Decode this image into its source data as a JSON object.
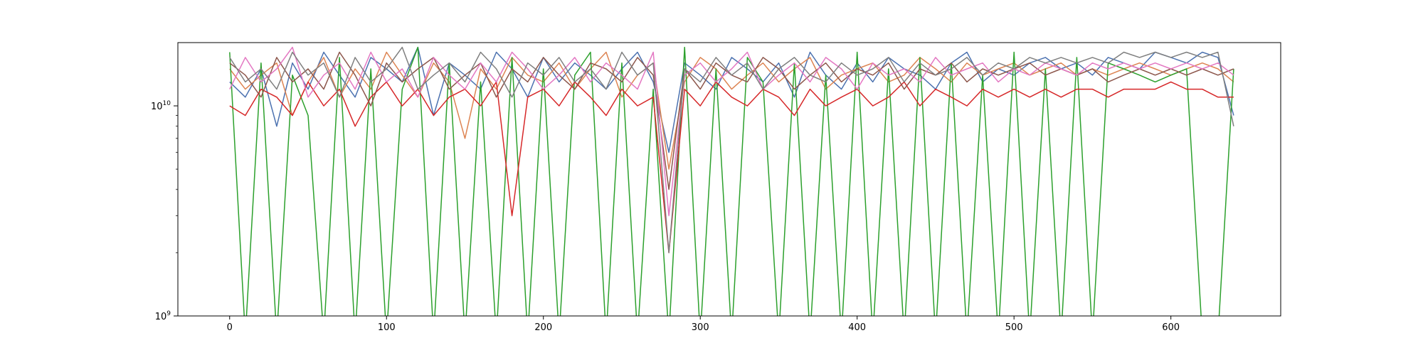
{
  "chart_data": {
    "type": "line",
    "title": "",
    "xlabel": "",
    "ylabel": "",
    "y_scale": "log",
    "xlim": [
      -33,
      670
    ],
    "ylim": [
      1000000000,
      20000000000
    ],
    "grid": false,
    "legend": "none",
    "x_ticks": [
      {
        "value": 0,
        "label": "0"
      },
      {
        "value": 100,
        "label": "100"
      },
      {
        "value": 200,
        "label": "200"
      },
      {
        "value": 300,
        "label": "300"
      },
      {
        "value": 400,
        "label": "400"
      },
      {
        "value": 500,
        "label": "500"
      },
      {
        "value": 600,
        "label": "600"
      }
    ],
    "y_ticks": [
      {
        "value": 1000000000,
        "base": "10",
        "exp": "9"
      },
      {
        "value": 10000000000,
        "base": "10",
        "exp": "10"
      }
    ],
    "x_start": 0,
    "x_step": 10,
    "series": [
      {
        "color": "#4c72b0",
        "values": [
          13000000000.0,
          11000000000.0,
          15000000000.0,
          8000000000.0,
          16000000000.0,
          12000000000.0,
          18000000000.0,
          14000000000.0,
          11000000000.0,
          17000000000.0,
          15000000000.0,
          13000000000.0,
          19000000000.0,
          9000000000.0,
          16000000000.0,
          14000000000.0,
          12000000000.0,
          18000000000.0,
          15000000000.0,
          11000000000.0,
          17000000000.0,
          13000000000.0,
          16000000000.0,
          14000000000.0,
          12000000000.0,
          15000000000.0,
          18000000000.0,
          13000000000.0,
          6000000000.0,
          16000000000.0,
          14000000000.0,
          12000000000.0,
          17000000000.0,
          15000000000.0,
          13000000000.0,
          16000000000.0,
          11000000000.0,
          18000000000.0,
          14000000000.0,
          12000000000.0,
          16000000000.0,
          13000000000.0,
          17000000000.0,
          15000000000.0,
          14000000000.0,
          12000000000.0,
          16000000000.0,
          18000000000.0,
          13000000000.0,
          15000000000.0,
          14000000000.0,
          16000000000.0,
          17000000000.0,
          15000000000.0,
          16000000000.0,
          14000000000.0,
          17000000000.0,
          16000000000.0,
          15000000000.0,
          18000000000.0,
          17000000000.0,
          16000000000.0,
          18000000000.0,
          17000000000.0,
          9000000000.0
        ]
      },
      {
        "color": "#dd8452",
        "values": [
          15000000000.0,
          12000000000.0,
          14000000000.0,
          16000000000.0,
          9000000000.0,
          13000000000.0,
          17000000000.0,
          11000000000.0,
          15000000000.0,
          12000000000.0,
          18000000000.0,
          14000000000.0,
          11000000000.0,
          16000000000.0,
          13000000000.0,
          7000000000.0,
          15000000000.0,
          12000000000.0,
          17000000000.0,
          14000000000.0,
          13000000000.0,
          16000000000.0,
          12000000000.0,
          15000000000.0,
          18000000000.0,
          11000000000.0,
          14000000000.0,
          16000000000.0,
          5000000000.0,
          13000000000.0,
          17000000000.0,
          15000000000.0,
          12000000000.0,
          14000000000.0,
          16000000000.0,
          13000000000.0,
          15000000000.0,
          17000000000.0,
          12000000000.0,
          14000000000.0,
          15000000000.0,
          16000000000.0,
          13000000000.0,
          14000000000.0,
          17000000000.0,
          15000000000.0,
          13000000000.0,
          16000000000.0,
          14000000000.0,
          15000000000.0,
          16000000000.0,
          14000000000.0,
          15000000000.0,
          16000000000.0,
          14000000000.0,
          15000000000.0,
          14000000000.0,
          15000000000.0,
          16000000000.0,
          15000000000.0,
          14000000000.0,
          15000000000.0,
          16000000000.0,
          15000000000.0,
          13000000000.0
        ]
      },
      {
        "color": "#2ca02c",
        "values": [
          18000000000.0,
          800000000.0,
          16000000000.0,
          800000000.0,
          14000000000.0,
          9000000000.0,
          800000000.0,
          17000000000.0,
          800000000.0,
          15000000000.0,
          800000000.0,
          12000000000.0,
          19000000000.0,
          800000000.0,
          16000000000.0,
          800000000.0,
          13000000000.0,
          800000000.0,
          17000000000.0,
          800000000.0,
          15000000000.0,
          800000000.0,
          14000000000.0,
          18000000000.0,
          800000000.0,
          16000000000.0,
          800000000.0,
          12000000000.0,
          800000000.0,
          19000000000.0,
          800000000.0,
          15000000000.0,
          800000000.0,
          17000000000.0,
          13000000000.0,
          800000000.0,
          16000000000.0,
          800000000.0,
          14000000000.0,
          800000000.0,
          18000000000.0,
          800000000.0,
          15000000000.0,
          800000000.0,
          17000000000.0,
          800000000.0,
          16000000000.0,
          800000000.0,
          14000000000.0,
          800000000.0,
          18000000000.0,
          800000000.0,
          15000000000.0,
          800000000.0,
          17000000000.0,
          800000000.0,
          16000000000.0,
          15000000000.0,
          14000000000.0,
          13000000000.0,
          14000000000.0,
          15000000000.0,
          800000000.0,
          800000000.0,
          15000000000.0
        ]
      },
      {
        "color": "#d62728",
        "values": [
          10000000000.0,
          9000000000.0,
          12000000000.0,
          11000000000.0,
          9000000000.0,
          13000000000.0,
          10000000000.0,
          12000000000.0,
          8000000000.0,
          11000000000.0,
          13000000000.0,
          10000000000.0,
          12000000000.0,
          9000000000.0,
          11000000000.0,
          12000000000.0,
          10000000000.0,
          13000000000.0,
          3000000000.0,
          11000000000.0,
          12000000000.0,
          10000000000.0,
          13000000000.0,
          11000000000.0,
          9000000000.0,
          12000000000.0,
          10000000000.0,
          11000000000.0,
          2000000000.0,
          12000000000.0,
          10000000000.0,
          13000000000.0,
          11000000000.0,
          10000000000.0,
          12000000000.0,
          11000000000.0,
          9000000000.0,
          12000000000.0,
          10000000000.0,
          11000000000.0,
          12000000000.0,
          10000000000.0,
          11000000000.0,
          13000000000.0,
          10000000000.0,
          12000000000.0,
          11000000000.0,
          10000000000.0,
          12000000000.0,
          11000000000.0,
          12000000000.0,
          11000000000.0,
          12000000000.0,
          11000000000.0,
          12000000000.0,
          12000000000.0,
          11000000000.0,
          12000000000.0,
          12000000000.0,
          12000000000.0,
          13000000000.0,
          12000000000.0,
          12000000000.0,
          11000000000.0,
          11000000000.0
        ]
      },
      {
        "color": "#8c564b",
        "values": [
          16000000000.0,
          14000000000.0,
          11000000000.0,
          17000000000.0,
          13000000000.0,
          15000000000.0,
          12000000000.0,
          18000000000.0,
          14000000000.0,
          10000000000.0,
          16000000000.0,
          13000000000.0,
          15000000000.0,
          17000000000.0,
          12000000000.0,
          14000000000.0,
          16000000000.0,
          11000000000.0,
          15000000000.0,
          13000000000.0,
          17000000000.0,
          14000000000.0,
          12000000000.0,
          16000000000.0,
          15000000000.0,
          13000000000.0,
          17000000000.0,
          14000000000.0,
          4000000000.0,
          15000000000.0,
          12000000000.0,
          16000000000.0,
          14000000000.0,
          13000000000.0,
          17000000000.0,
          15000000000.0,
          12000000000.0,
          14000000000.0,
          16000000000.0,
          13000000000.0,
          15000000000.0,
          14000000000.0,
          16000000000.0,
          12000000000.0,
          15000000000.0,
          14000000000.0,
          16000000000.0,
          13000000000.0,
          15000000000.0,
          14000000000.0,
          15000000000.0,
          16000000000.0,
          14000000000.0,
          15000000000.0,
          14000000000.0,
          15000000000.0,
          13000000000.0,
          14000000000.0,
          15000000000.0,
          14000000000.0,
          15000000000.0,
          14000000000.0,
          15000000000.0,
          14000000000.0,
          15000000000.0
        ]
      },
      {
        "color": "#e377c2",
        "values": [
          12000000000.0,
          17000000000.0,
          13000000000.0,
          15000000000.0,
          19000000000.0,
          11000000000.0,
          14000000000.0,
          16000000000.0,
          12000000000.0,
          18000000000.0,
          13000000000.0,
          15000000000.0,
          11000000000.0,
          17000000000.0,
          14000000000.0,
          12000000000.0,
          16000000000.0,
          13000000000.0,
          18000000000.0,
          15000000000.0,
          12000000000.0,
          14000000000.0,
          17000000000.0,
          13000000000.0,
          16000000000.0,
          14000000000.0,
          12000000000.0,
          18000000000.0,
          3000000000.0,
          14000000000.0,
          16000000000.0,
          13000000000.0,
          15000000000.0,
          18000000000.0,
          12000000000.0,
          14000000000.0,
          16000000000.0,
          13000000000.0,
          17000000000.0,
          15000000000.0,
          12000000000.0,
          16000000000.0,
          14000000000.0,
          15000000000.0,
          13000000000.0,
          17000000000.0,
          14000000000.0,
          15000000000.0,
          16000000000.0,
          13000000000.0,
          15000000000.0,
          14000000000.0,
          16000000000.0,
          15000000000.0,
          14000000000.0,
          16000000000.0,
          15000000000.0,
          16000000000.0,
          15000000000.0,
          16000000000.0,
          15000000000.0,
          16000000000.0,
          15000000000.0,
          16000000000.0,
          14000000000.0
        ]
      },
      {
        "color": "#7f7f7f",
        "values": [
          17000000000.0,
          13000000000.0,
          15000000000.0,
          12000000000.0,
          18000000000.0,
          14000000000.0,
          16000000000.0,
          11000000000.0,
          17000000000.0,
          13000000000.0,
          15000000000.0,
          19000000000.0,
          12000000000.0,
          14000000000.0,
          16000000000.0,
          13000000000.0,
          18000000000.0,
          15000000000.0,
          11000000000.0,
          16000000000.0,
          14000000000.0,
          17000000000.0,
          13000000000.0,
          15000000000.0,
          12000000000.0,
          18000000000.0,
          14000000000.0,
          16000000000.0,
          2000000000.0,
          15000000000.0,
          13000000000.0,
          17000000000.0,
          14000000000.0,
          16000000000.0,
          12000000000.0,
          15000000000.0,
          17000000000.0,
          14000000000.0,
          13000000000.0,
          16000000000.0,
          14000000000.0,
          15000000000.0,
          17000000000.0,
          13000000000.0,
          16000000000.0,
          14000000000.0,
          15000000000.0,
          17000000000.0,
          14000000000.0,
          16000000000.0,
          15000000000.0,
          17000000000.0,
          16000000000.0,
          17000000000.0,
          16000000000.0,
          17000000000.0,
          16000000000.0,
          18000000000.0,
          17000000000.0,
          18000000000.0,
          17000000000.0,
          18000000000.0,
          17000000000.0,
          18000000000.0,
          8000000000.0
        ]
      }
    ]
  }
}
